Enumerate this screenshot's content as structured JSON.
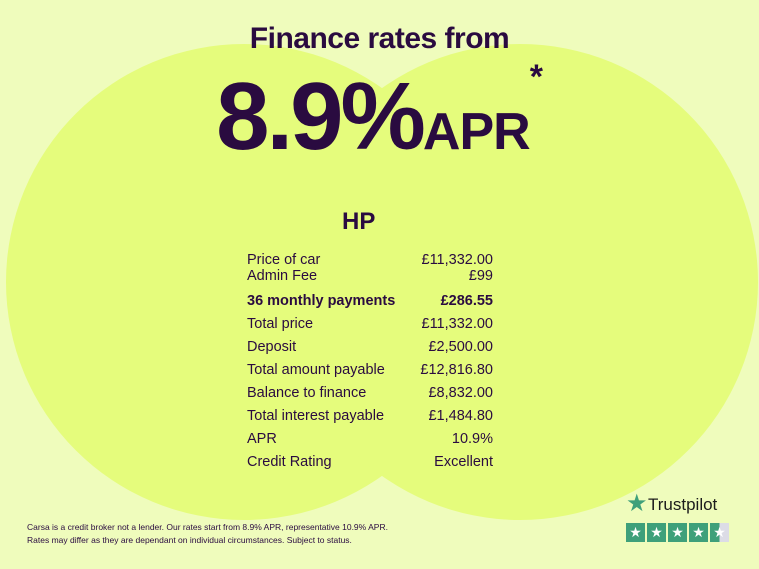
{
  "headline": "Finance rates from",
  "rate": {
    "value": "8.9%",
    "suffix": "APR",
    "asterisk": "*"
  },
  "product": "HP",
  "rows": [
    {
      "label": "Price of car",
      "value": "£11,332.00"
    },
    {
      "label": "Admin Fee",
      "value": "£99"
    },
    {
      "label": "36 monthly payments",
      "value": "£286.55"
    },
    {
      "label": "Total price",
      "value": "£11,332.00"
    },
    {
      "label": "Deposit",
      "value": "£2,500.00"
    },
    {
      "label": "Total amount payable",
      "value": "£12,816.80"
    },
    {
      "label": "Balance to finance",
      "value": "£8,832.00"
    },
    {
      "label": "Total interest payable",
      "value": "£1,484.80"
    },
    {
      "label": "APR",
      "value": "10.9%"
    },
    {
      "label": "Credit Rating",
      "value": "Excellent"
    }
  ],
  "disclaimer": [
    "Carsa is a credit broker not a lender. Our rates start from 8.9% APR, representative 10.9% APR.",
    "Rates may differ as they are dependant on individual circumstances. Subject to status."
  ],
  "trustpilot": {
    "name": "Trustpilot",
    "rating": 4.5,
    "star_color": "#3ea07a"
  },
  "colors": {
    "background": "#effcbc",
    "circle": "#e5fc7c",
    "text": "#2a0b40"
  }
}
